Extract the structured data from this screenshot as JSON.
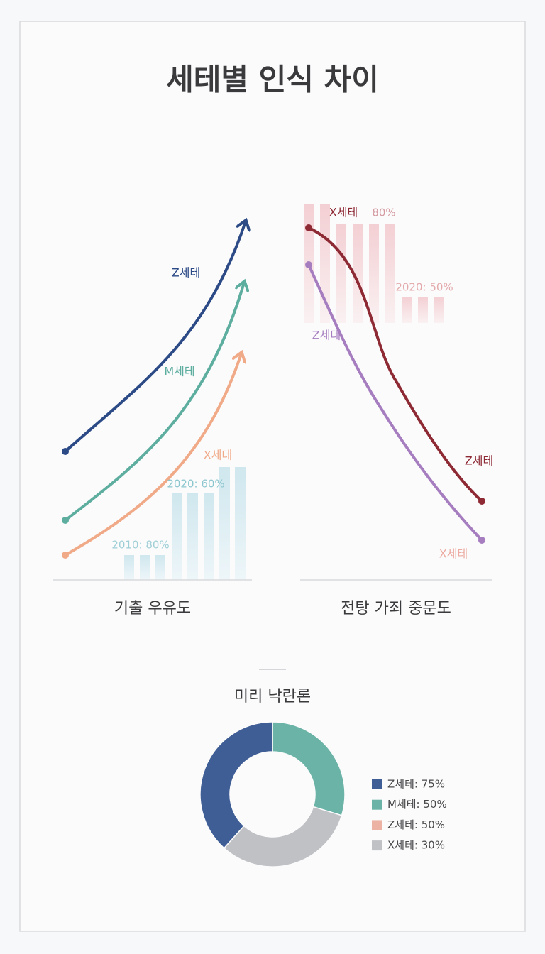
{
  "title": "세테별 인식 차이",
  "left_panel": {
    "arrow_labels": [
      "Z세테",
      "M세테",
      "X세테"
    ],
    "bar_labels": [
      "2010: 80%",
      "2020: 60%"
    ],
    "caption": "기출 우유도"
  },
  "right_panel": {
    "top_labels": [
      "X세테",
      "80%"
    ],
    "bar_label": "2020: 50%",
    "start_label": "Z세테",
    "end_labels": [
      "Z세테",
      "X세테"
    ],
    "caption": "전탕 가죄 중문도"
  },
  "donut": {
    "title": "미리 낙란론",
    "legend": [
      {
        "label": "Z세테: 75%",
        "color": "#3f5e95"
      },
      {
        "label": "M세테: 50%",
        "color": "#6ab3a6"
      },
      {
        "label": "Z세테: 50%",
        "color": "#ecb3a4"
      },
      {
        "label": "X세테: 30%",
        "color": "#bfc1c5"
      }
    ]
  }
}
